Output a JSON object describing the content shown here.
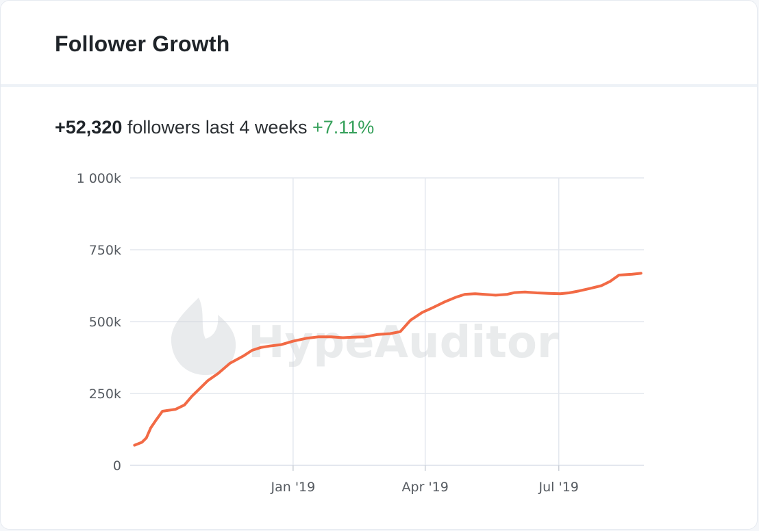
{
  "card": {
    "title": "Follower Growth"
  },
  "summary": {
    "count": "+52,320",
    "text": " followers last 4 weeks ",
    "change": "+7.11%"
  },
  "colors": {
    "line": "#f26a45",
    "grid": "#e3e7ee",
    "positive": "#35a05a"
  },
  "chart_data": {
    "type": "line",
    "title": "",
    "xlabel": "",
    "ylabel": "",
    "x_ticks": [
      "Jan '19",
      "Apr '19",
      "Jul '19"
    ],
    "y_ticks": [
      "0",
      "250k",
      "500k",
      "750k",
      "1 000k"
    ],
    "ylim": [
      0,
      1000000
    ],
    "xlim": [
      "2018-09-12",
      "2019-08-28"
    ],
    "grid": true,
    "watermark": "HypeAuditor",
    "series": [
      {
        "values": [
          [
            "2018-09-15",
            70000
          ],
          [
            "2018-09-20",
            80000
          ],
          [
            "2018-09-23",
            95000
          ],
          [
            "2018-09-26",
            130000
          ],
          [
            "2018-09-30",
            160000
          ],
          [
            "2018-10-04",
            188000
          ],
          [
            "2018-10-09",
            192000
          ],
          [
            "2018-10-13",
            195000
          ],
          [
            "2018-10-19",
            210000
          ],
          [
            "2018-10-24",
            240000
          ],
          [
            "2018-10-30",
            270000
          ],
          [
            "2018-11-04",
            295000
          ],
          [
            "2018-11-11",
            320000
          ],
          [
            "2018-11-19",
            355000
          ],
          [
            "2018-11-28",
            380000
          ],
          [
            "2018-12-04",
            400000
          ],
          [
            "2018-12-10",
            410000
          ],
          [
            "2018-12-16",
            415000
          ],
          [
            "2018-12-24",
            420000
          ],
          [
            "2019-01-01",
            432000
          ],
          [
            "2019-01-10",
            442000
          ],
          [
            "2019-01-18",
            447000
          ],
          [
            "2019-01-27",
            447000
          ],
          [
            "2019-02-04",
            444000
          ],
          [
            "2019-02-11",
            446000
          ],
          [
            "2019-02-19",
            447000
          ],
          [
            "2019-02-27",
            455000
          ],
          [
            "2019-03-08",
            458000
          ],
          [
            "2019-03-15",
            465000
          ],
          [
            "2019-03-22",
            505000
          ],
          [
            "2019-03-30",
            532000
          ],
          [
            "2019-04-06",
            548000
          ],
          [
            "2019-04-14",
            568000
          ],
          [
            "2019-04-22",
            585000
          ],
          [
            "2019-04-28",
            595000
          ],
          [
            "2019-05-05",
            597000
          ],
          [
            "2019-05-11",
            595000
          ],
          [
            "2019-05-19",
            592000
          ],
          [
            "2019-05-27",
            595000
          ],
          [
            "2019-06-01",
            601000
          ],
          [
            "2019-06-08",
            603000
          ],
          [
            "2019-06-16",
            600000
          ],
          [
            "2019-06-24",
            598000
          ],
          [
            "2019-07-02",
            597000
          ],
          [
            "2019-07-08",
            600000
          ],
          [
            "2019-07-15",
            607000
          ],
          [
            "2019-07-22",
            615000
          ],
          [
            "2019-07-30",
            625000
          ],
          [
            "2019-08-05",
            640000
          ],
          [
            "2019-08-11",
            662000
          ],
          [
            "2019-08-20",
            665000
          ],
          [
            "2019-08-26",
            668000
          ]
        ]
      }
    ]
  }
}
